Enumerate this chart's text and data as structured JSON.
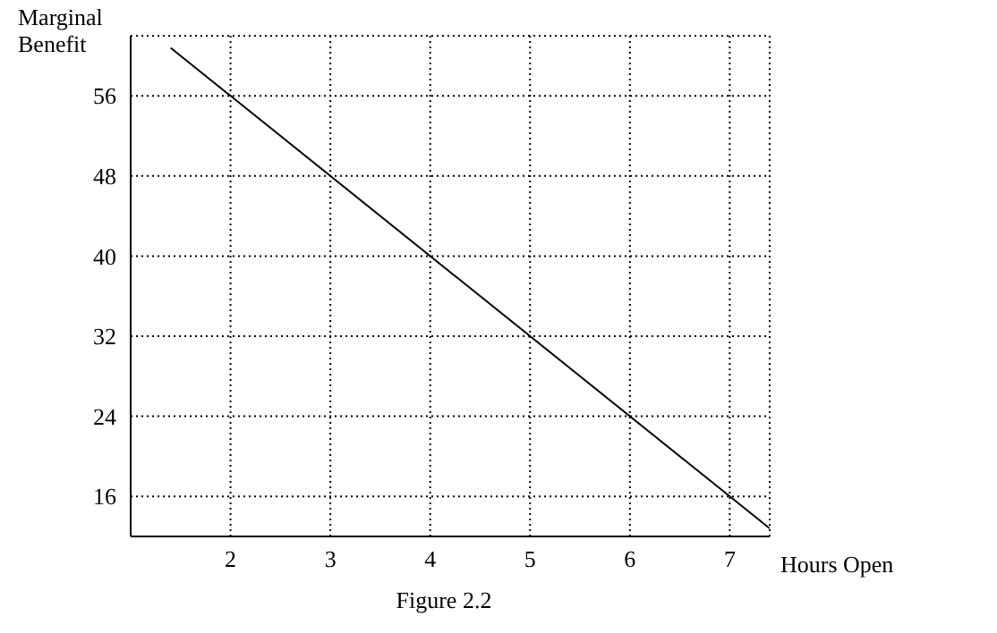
{
  "chart_data": {
    "type": "line",
    "xlabel": "Hours Open",
    "ylabel": "Marginal Benefit",
    "annotations": [
      "Figure 2.2"
    ],
    "x": [
      1.4,
      7.4
    ],
    "series": [
      {
        "color": "#000000",
        "values": [
          60.8,
          12.8
        ]
      }
    ],
    "xlim": [
      1,
      7.4
    ],
    "ylim": [
      12,
      62
    ],
    "xticks": [
      2,
      3,
      4,
      5,
      6,
      7
    ],
    "yticks": [
      16,
      24,
      32,
      40,
      48,
      56
    ],
    "grid": true,
    "legend": false,
    "marker": "none",
    "line_style": "solid"
  }
}
